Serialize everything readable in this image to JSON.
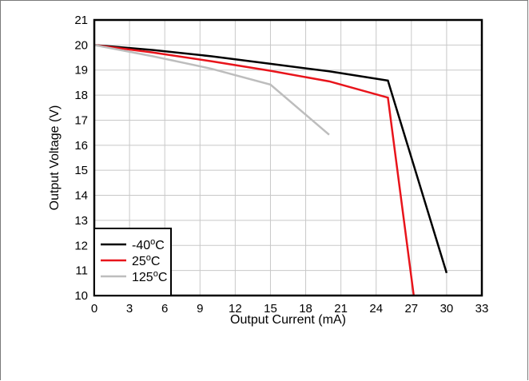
{
  "chart_data": {
    "type": "line",
    "title": "",
    "xlabel": "Output Current (mA)",
    "ylabel": "Output Voltage (V)",
    "xlim": [
      0,
      33
    ],
    "ylim": [
      10,
      21
    ],
    "x_ticks": [
      "0",
      "3",
      "6",
      "9",
      "12",
      "15",
      "18",
      "21",
      "24",
      "27",
      "30",
      "33"
    ],
    "y_ticks": [
      "10",
      "11",
      "12",
      "13",
      "14",
      "15",
      "16",
      "17",
      "18",
      "19",
      "20",
      "21"
    ],
    "grid": true,
    "legend_position": "bottom-left",
    "series": [
      {
        "name": "-40°C",
        "legend_base": "-40",
        "legend_sup": "o",
        "legend_suffix": "C",
        "color": "#000000",
        "points": [
          [
            0,
            20.0
          ],
          [
            5,
            19.8
          ],
          [
            10,
            19.55
          ],
          [
            15,
            19.25
          ],
          [
            20,
            18.95
          ],
          [
            25,
            18.58
          ],
          [
            30,
            10.9
          ]
        ]
      },
      {
        "name": "25°C",
        "legend_base": "25",
        "legend_sup": "o",
        "legend_suffix": "C",
        "color": "#e8141b",
        "points": [
          [
            0,
            20.0
          ],
          [
            5,
            19.7
          ],
          [
            10,
            19.35
          ],
          [
            15,
            18.97
          ],
          [
            20,
            18.55
          ],
          [
            25,
            17.9
          ],
          [
            27.2,
            10.0
          ]
        ]
      },
      {
        "name": "125°C",
        "legend_base": "125",
        "legend_sup": "o",
        "legend_suffix": "C",
        "color": "#bdbdbd",
        "points": [
          [
            0,
            20.0
          ],
          [
            5,
            19.55
          ],
          [
            10,
            19.05
          ],
          [
            15,
            18.42
          ],
          [
            20,
            16.42
          ]
        ]
      }
    ]
  }
}
